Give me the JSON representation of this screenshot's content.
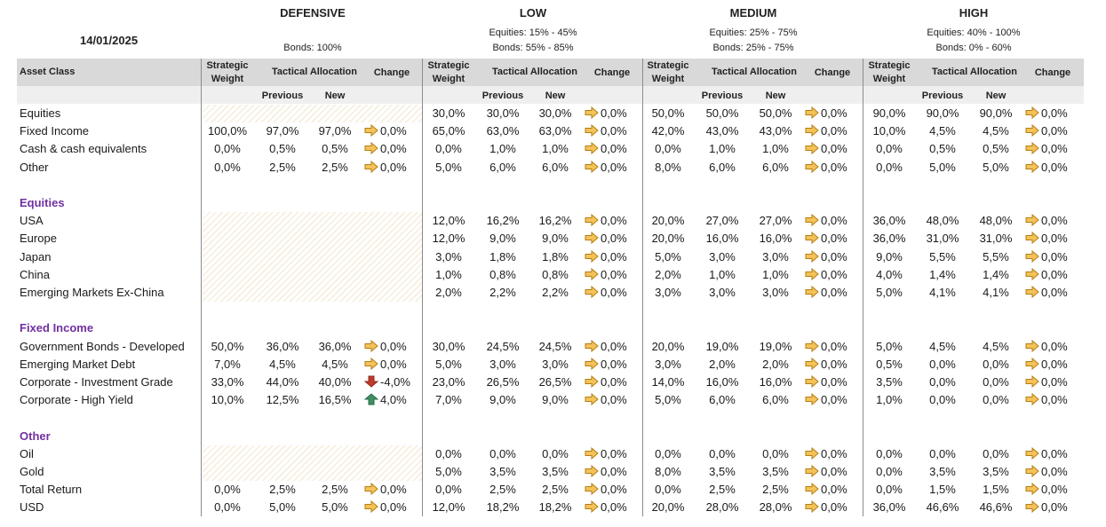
{
  "date": "14/01/2025",
  "colors": {
    "band": "#d9d9d9",
    "band2": "#efefef",
    "section": "#7030a0",
    "flat_arrow": "#e3a41d",
    "down_arrow": "#c0392b",
    "up_arrow": "#3f8f63"
  },
  "profiles": [
    {
      "name": "DEFENSIVE",
      "range1": "",
      "range2": "Bonds: 100%"
    },
    {
      "name": "LOW",
      "range1": "Equities: 15% - 45%",
      "range2": "Bonds: 55% - 85%"
    },
    {
      "name": "MEDIUM",
      "range1": "Equities: 25% - 75%",
      "range2": "Bonds: 25% - 75%"
    },
    {
      "name": "HIGH",
      "range1": "Equities: 40% - 100%",
      "range2": "Bonds: 0% - 60%"
    }
  ],
  "columns": {
    "asset_class": "Asset Class",
    "strategic_weight": "Strategic Weight",
    "tactical_allocation": "Tactical Allocation",
    "change": "Change",
    "previous": "Previous",
    "new": "New"
  },
  "rows": [
    {
      "label": "Equities",
      "type": "data",
      "cells": [
        null,
        [
          "30,0%",
          "30,0%",
          "30,0%",
          "0,0%"
        ],
        [
          "50,0%",
          "50,0%",
          "50,0%",
          "0,0%"
        ],
        [
          "90,0%",
          "90,0%",
          "90,0%",
          "0,0%"
        ]
      ]
    },
    {
      "label": "Fixed Income",
      "type": "data",
      "cells": [
        [
          "100,0%",
          "97,0%",
          "97,0%",
          "0,0%"
        ],
        [
          "65,0%",
          "63,0%",
          "63,0%",
          "0,0%"
        ],
        [
          "42,0%",
          "43,0%",
          "43,0%",
          "0,0%"
        ],
        [
          "10,0%",
          "4,5%",
          "4,5%",
          "0,0%"
        ]
      ]
    },
    {
      "label": "Cash & cash equivalents",
      "type": "data",
      "cells": [
        [
          "0,0%",
          "0,5%",
          "0,5%",
          "0,0%"
        ],
        [
          "0,0%",
          "1,0%",
          "1,0%",
          "0,0%"
        ],
        [
          "0,0%",
          "1,0%",
          "1,0%",
          "0,0%"
        ],
        [
          "0,0%",
          "0,5%",
          "0,5%",
          "0,0%"
        ]
      ]
    },
    {
      "label": "Other",
      "type": "data",
      "cells": [
        [
          "0,0%",
          "2,5%",
          "2,5%",
          "0,0%"
        ],
        [
          "5,0%",
          "6,0%",
          "6,0%",
          "0,0%"
        ],
        [
          "8,0%",
          "6,0%",
          "6,0%",
          "0,0%"
        ],
        [
          "0,0%",
          "5,0%",
          "5,0%",
          "0,0%"
        ]
      ]
    },
    {
      "type": "blank"
    },
    {
      "label": "Equities",
      "type": "section"
    },
    {
      "label": "USA",
      "type": "data",
      "cells": [
        null,
        [
          "12,0%",
          "16,2%",
          "16,2%",
          "0,0%"
        ],
        [
          "20,0%",
          "27,0%",
          "27,0%",
          "0,0%"
        ],
        [
          "36,0%",
          "48,0%",
          "48,0%",
          "0,0%"
        ]
      ]
    },
    {
      "label": "Europe",
      "type": "data",
      "cells": [
        null,
        [
          "12,0%",
          "9,0%",
          "9,0%",
          "0,0%"
        ],
        [
          "20,0%",
          "16,0%",
          "16,0%",
          "0,0%"
        ],
        [
          "36,0%",
          "31,0%",
          "31,0%",
          "0,0%"
        ]
      ]
    },
    {
      "label": "Japan",
      "type": "data",
      "cells": [
        null,
        [
          "3,0%",
          "1,8%",
          "1,8%",
          "0,0%"
        ],
        [
          "5,0%",
          "3,0%",
          "3,0%",
          "0,0%"
        ],
        [
          "9,0%",
          "5,5%",
          "5,5%",
          "0,0%"
        ]
      ]
    },
    {
      "label": "China",
      "type": "data",
      "cells": [
        null,
        [
          "1,0%",
          "0,8%",
          "0,8%",
          "0,0%"
        ],
        [
          "2,0%",
          "1,0%",
          "1,0%",
          "0,0%"
        ],
        [
          "4,0%",
          "1,4%",
          "1,4%",
          "0,0%"
        ]
      ]
    },
    {
      "label": "Emerging Markets Ex-China",
      "type": "data",
      "cells": [
        null,
        [
          "2,0%",
          "2,2%",
          "2,2%",
          "0,0%"
        ],
        [
          "3,0%",
          "3,0%",
          "3,0%",
          "0,0%"
        ],
        [
          "5,0%",
          "4,1%",
          "4,1%",
          "0,0%"
        ]
      ]
    },
    {
      "type": "blank"
    },
    {
      "label": "Fixed Income",
      "type": "section"
    },
    {
      "label": "Government Bonds - Developed",
      "type": "data",
      "cells": [
        [
          "50,0%",
          "36,0%",
          "36,0%",
          "0,0%"
        ],
        [
          "30,0%",
          "24,5%",
          "24,5%",
          "0,0%"
        ],
        [
          "20,0%",
          "19,0%",
          "19,0%",
          "0,0%"
        ],
        [
          "5,0%",
          "4,5%",
          "4,5%",
          "0,0%"
        ]
      ]
    },
    {
      "label": "Emerging Market Debt",
      "type": "data",
      "cells": [
        [
          "7,0%",
          "4,5%",
          "4,5%",
          "0,0%"
        ],
        [
          "5,0%",
          "3,0%",
          "3,0%",
          "0,0%"
        ],
        [
          "3,0%",
          "2,0%",
          "2,0%",
          "0,0%"
        ],
        [
          "0,5%",
          "0,0%",
          "0,0%",
          "0,0%"
        ]
      ]
    },
    {
      "label": "Corporate - Investment Grade",
      "type": "data",
      "cells": [
        [
          "33,0%",
          "44,0%",
          "40,0%",
          "-4,0%"
        ],
        [
          "23,0%",
          "26,5%",
          "26,5%",
          "0,0%"
        ],
        [
          "14,0%",
          "16,0%",
          "16,0%",
          "0,0%"
        ],
        [
          "3,5%",
          "0,0%",
          "0,0%",
          "0,0%"
        ]
      ]
    },
    {
      "label": "Corporate - High Yield",
      "type": "data",
      "cells": [
        [
          "10,0%",
          "12,5%",
          "16,5%",
          "4,0%"
        ],
        [
          "7,0%",
          "9,0%",
          "9,0%",
          "0,0%"
        ],
        [
          "5,0%",
          "6,0%",
          "6,0%",
          "0,0%"
        ],
        [
          "1,0%",
          "0,0%",
          "0,0%",
          "0,0%"
        ]
      ]
    },
    {
      "type": "blank"
    },
    {
      "label": "Other",
      "type": "section"
    },
    {
      "label": "Oil",
      "type": "data",
      "cells": [
        null,
        [
          "0,0%",
          "0,0%",
          "0,0%",
          "0,0%"
        ],
        [
          "0,0%",
          "0,0%",
          "0,0%",
          "0,0%"
        ],
        [
          "0,0%",
          "0,0%",
          "0,0%",
          "0,0%"
        ]
      ]
    },
    {
      "label": "Gold",
      "type": "data",
      "cells": [
        null,
        [
          "5,0%",
          "3,5%",
          "3,5%",
          "0,0%"
        ],
        [
          "8,0%",
          "3,5%",
          "3,5%",
          "0,0%"
        ],
        [
          "0,0%",
          "3,5%",
          "3,5%",
          "0,0%"
        ]
      ]
    },
    {
      "label": "Total Return",
      "type": "data",
      "cells": [
        [
          "0,0%",
          "2,5%",
          "2,5%",
          "0,0%"
        ],
        [
          "0,0%",
          "2,5%",
          "2,5%",
          "0,0%"
        ],
        [
          "0,0%",
          "2,5%",
          "2,5%",
          "0,0%"
        ],
        [
          "0,0%",
          "1,5%",
          "1,5%",
          "0,0%"
        ]
      ]
    },
    {
      "label": "USD",
      "type": "data",
      "cells": [
        [
          "0,0%",
          "5,0%",
          "5,0%",
          "0,0%"
        ],
        [
          "12,0%",
          "18,2%",
          "18,2%",
          "0,0%"
        ],
        [
          "20,0%",
          "28,0%",
          "28,0%",
          "0,0%"
        ],
        [
          "36,0%",
          "46,6%",
          "46,6%",
          "0,0%"
        ]
      ]
    }
  ]
}
